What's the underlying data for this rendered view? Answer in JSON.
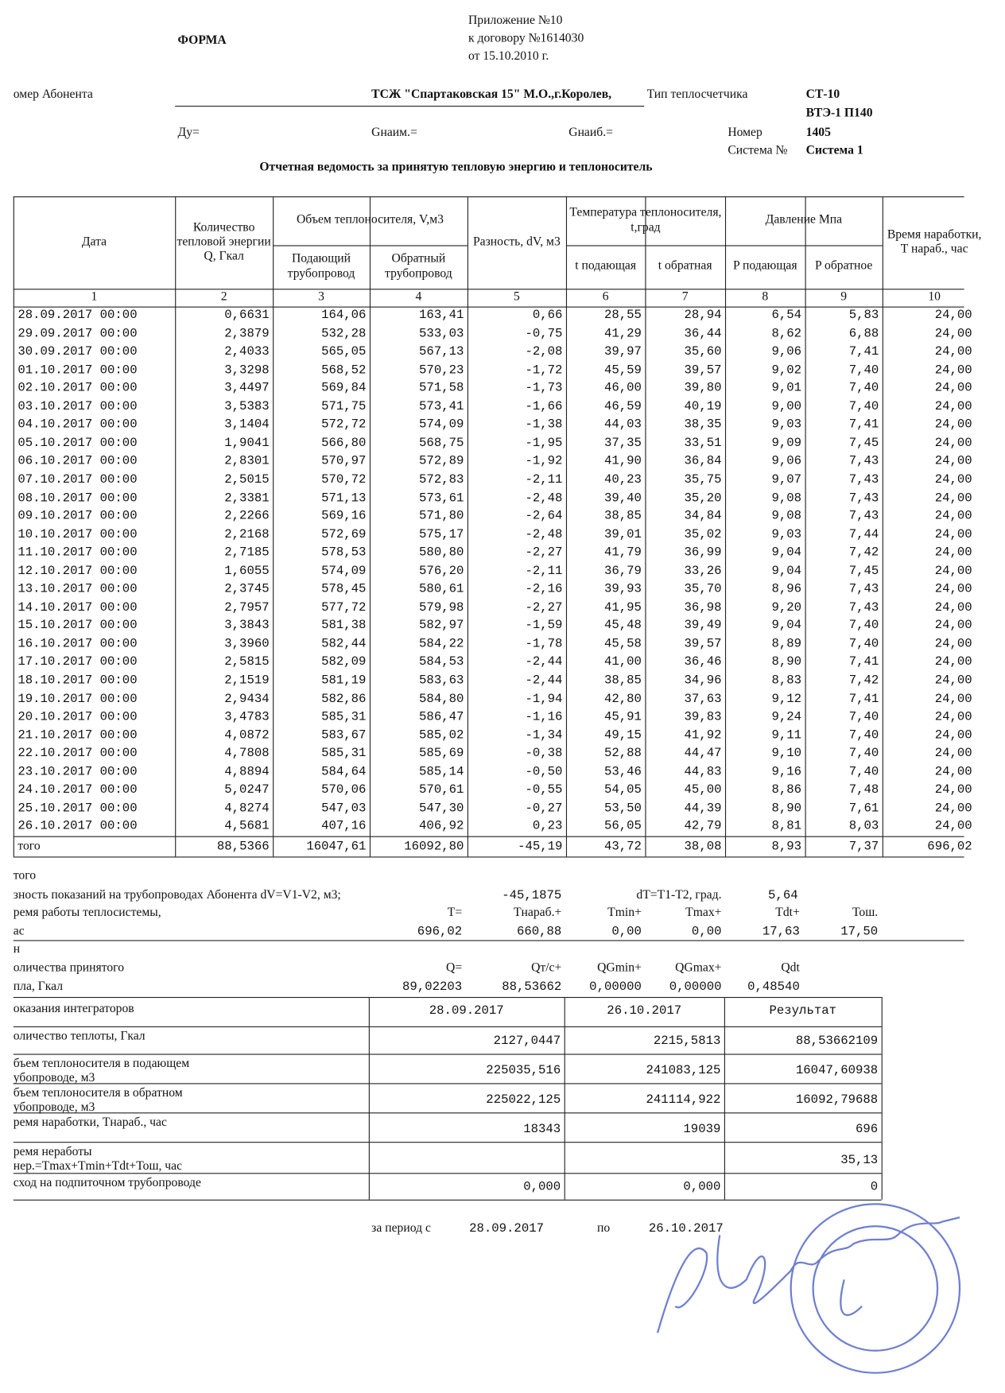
{
  "header": {
    "form": "ФОРМА",
    "appendix": [
      "Приложение №10",
      "к договору №1614030",
      "от 15.10.2010 г."
    ],
    "subscriber_label": "омер Абонента",
    "subscriber": "ТСЖ \"Спартаковская 15\" М.О.,г.Королев,",
    "meter_type_label": "Тип теплосчетчика",
    "meter_type": "СТ-10",
    "meter_model": "ВТЭ-1 П140",
    "du": "Ду=",
    "g_min": "Gнаим.=",
    "g_max": "Gнаиб.=",
    "number_label": "Номер",
    "number": "1405",
    "system_label": "Система №",
    "system": "Система 1",
    "title": "Отчетная ведомость за принятую тепловую энергию и теплоноситель"
  },
  "table": {
    "head": {
      "date": "Дата",
      "q": "Количество тепловой энергии Q, Гкал",
      "volume": "Объем теплоносителя,      V,м3",
      "supply": "Подающий трубопровод",
      "return": "Обратный трубопровод",
      "diff": "Разность, dV, м3",
      "temp": "Температура теплоносителя, t,град",
      "t_supply": "t подающая",
      "t_return": "t обратная",
      "pressure": "Давление Мпа",
      "p_supply": "P подающая",
      "p_return": "P   обратное",
      "hours": "Время наработки, T нараб., час"
    },
    "column_numbers": [
      "1",
      "2",
      "3",
      "4",
      "5",
      "6",
      "7",
      "8",
      "9",
      "10"
    ],
    "rows": [
      [
        "28.09.2017 00:00",
        "0,6631",
        "164,06",
        "163,41",
        "0,66",
        "28,55",
        "28,94",
        "6,54",
        "5,83",
        "24,00"
      ],
      [
        "29.09.2017 00:00",
        "2,3879",
        "532,28",
        "533,03",
        "-0,75",
        "41,29",
        "36,44",
        "8,62",
        "6,88",
        "24,00"
      ],
      [
        "30.09.2017 00:00",
        "2,4033",
        "565,05",
        "567,13",
        "-2,08",
        "39,97",
        "35,60",
        "9,06",
        "7,41",
        "24,00"
      ],
      [
        "01.10.2017 00:00",
        "3,3298",
        "568,52",
        "570,23",
        "-1,72",
        "45,59",
        "39,57",
        "9,02",
        "7,40",
        "24,00"
      ],
      [
        "02.10.2017 00:00",
        "3,4497",
        "569,84",
        "571,58",
        "-1,73",
        "46,00",
        "39,80",
        "9,01",
        "7,40",
        "24,00"
      ],
      [
        "03.10.2017 00:00",
        "3,5383",
        "571,75",
        "573,41",
        "-1,66",
        "46,59",
        "40,19",
        "9,00",
        "7,40",
        "24,00"
      ],
      [
        "04.10.2017 00:00",
        "3,1404",
        "572,72",
        "574,09",
        "-1,38",
        "44,03",
        "38,35",
        "9,03",
        "7,41",
        "24,00"
      ],
      [
        "05.10.2017 00:00",
        "1,9041",
        "566,80",
        "568,75",
        "-1,95",
        "37,35",
        "33,51",
        "9,09",
        "7,45",
        "24,00"
      ],
      [
        "06.10.2017 00:00",
        "2,8301",
        "570,97",
        "572,89",
        "-1,92",
        "41,90",
        "36,84",
        "9,06",
        "7,43",
        "24,00"
      ],
      [
        "07.10.2017 00:00",
        "2,5015",
        "570,72",
        "572,83",
        "-2,11",
        "40,23",
        "35,75",
        "9,07",
        "7,43",
        "24,00"
      ],
      [
        "08.10.2017 00:00",
        "2,3381",
        "571,13",
        "573,61",
        "-2,48",
        "39,40",
        "35,20",
        "9,08",
        "7,43",
        "24,00"
      ],
      [
        "09.10.2017 00:00",
        "2,2266",
        "569,16",
        "571,80",
        "-2,64",
        "38,85",
        "34,84",
        "9,08",
        "7,43",
        "24,00"
      ],
      [
        "10.10.2017 00:00",
        "2,2168",
        "572,69",
        "575,17",
        "-2,48",
        "39,01",
        "35,02",
        "9,03",
        "7,44",
        "24,00"
      ],
      [
        "11.10.2017 00:00",
        "2,7185",
        "578,53",
        "580,80",
        "-2,27",
        "41,79",
        "36,99",
        "9,04",
        "7,42",
        "24,00"
      ],
      [
        "12.10.2017 00:00",
        "1,6055",
        "574,09",
        "576,20",
        "-2,11",
        "36,79",
        "33,26",
        "9,04",
        "7,45",
        "24,00"
      ],
      [
        "13.10.2017 00:00",
        "2,3745",
        "578,45",
        "580,61",
        "-2,16",
        "39,93",
        "35,70",
        "8,96",
        "7,43",
        "24,00"
      ],
      [
        "14.10.2017 00:00",
        "2,7957",
        "577,72",
        "579,98",
        "-2,27",
        "41,95",
        "36,98",
        "9,20",
        "7,43",
        "24,00"
      ],
      [
        "15.10.2017 00:00",
        "3,3843",
        "581,38",
        "582,97",
        "-1,59",
        "45,48",
        "39,49",
        "9,04",
        "7,40",
        "24,00"
      ],
      [
        "16.10.2017 00:00",
        "3,3960",
        "582,44",
        "584,22",
        "-1,78",
        "45,58",
        "39,57",
        "8,89",
        "7,40",
        "24,00"
      ],
      [
        "17.10.2017 00:00",
        "2,5815",
        "582,09",
        "584,53",
        "-2,44",
        "41,00",
        "36,46",
        "8,90",
        "7,41",
        "24,00"
      ],
      [
        "18.10.2017 00:00",
        "2,1519",
        "581,19",
        "583,63",
        "-2,44",
        "38,85",
        "34,96",
        "8,83",
        "7,42",
        "24,00"
      ],
      [
        "19.10.2017 00:00",
        "2,9434",
        "582,86",
        "584,80",
        "-1,94",
        "42,80",
        "37,63",
        "9,12",
        "7,41",
        "24,00"
      ],
      [
        "20.10.2017 00:00",
        "3,4783",
        "585,31",
        "586,47",
        "-1,16",
        "45,91",
        "39,83",
        "9,24",
        "7,40",
        "24,00"
      ],
      [
        "21.10.2017 00:00",
        "4,0872",
        "583,67",
        "585,02",
        "-1,34",
        "49,15",
        "41,92",
        "9,11",
        "7,40",
        "24,00"
      ],
      [
        "22.10.2017 00:00",
        "4,7808",
        "585,31",
        "585,69",
        "-0,38",
        "52,88",
        "44,47",
        "9,10",
        "7,40",
        "24,00"
      ],
      [
        "23.10.2017 00:00",
        "4,8894",
        "584,64",
        "585,14",
        "-0,50",
        "53,46",
        "44,83",
        "9,16",
        "7,40",
        "24,00"
      ],
      [
        "24.10.2017 00:00",
        "5,0247",
        "570,06",
        "570,61",
        "-0,55",
        "54,05",
        "45,00",
        "8,86",
        "7,48",
        "24,00"
      ],
      [
        "25.10.2017 00:00",
        "4,8274",
        "547,03",
        "547,30",
        "-0,27",
        "53,50",
        "44,39",
        "8,90",
        "7,61",
        "24,00"
      ],
      [
        "26.10.2017 00:00",
        "4,5681",
        "407,16",
        "406,92",
        "0,23",
        "56,05",
        "42,79",
        "8,81",
        "8,03",
        "24,00"
      ]
    ],
    "total": [
      "того",
      "88,5366",
      "16047,61",
      "16092,80",
      "-45,19",
      "43,72",
      "38,08",
      "8,93",
      "7,37",
      "696,02"
    ]
  },
  "summary": {
    "lines": [
      [
        "того"
      ],
      [
        "зность показаний на трубопроводах Абонента dV=V1-V2, м3;",
        "-45,1875",
        "dT=T1-T2, град.",
        "5,64"
      ],
      [
        "ремя работы теплосистемы,",
        "T=",
        "Тнараб.+",
        "Tmin+",
        "Tmax+",
        "Tdt+",
        "Тош."
      ],
      [
        "ас",
        "696,02",
        "660,88",
        "0,00",
        "0,00",
        "17,63",
        "17,50"
      ],
      [
        "н"
      ],
      [
        "оличества принятого",
        "Q=",
        "Qт/c+",
        "QGmin+",
        "QGmax+",
        "Qdt"
      ],
      [
        "пла, Гкал",
        "89,02203",
        "88,53662",
        "0,00000",
        "0,00000",
        "0,48540"
      ]
    ]
  },
  "integrators": {
    "header": [
      "оказания интеграторов",
      "28.09.2017",
      "26.10.2017",
      "Результат"
    ],
    "rows": [
      [
        "оличество теплоты, Гкал",
        "2127,0447",
        "2215,5813",
        "88,53662109"
      ],
      [
        "бъем теплоносителя в подающем\nубопроводе, м3",
        "225035,516",
        "241083,125",
        "16047,60938"
      ],
      [
        "бъем теплоносителя в обратном\nубопроводе, м3",
        "225022,125",
        "241114,922",
        "16092,79688"
      ],
      [
        "ремя наработки, Тнараб., час",
        "18343",
        "19039",
        "696"
      ],
      [
        "ремя неработы\nнер.=Tmax+Tmin+Tdt+Тош, час",
        "",
        "",
        "35,13"
      ],
      [
        "сход на подпиточном трубопроводе",
        "0,000",
        "0,000",
        "0"
      ]
    ]
  },
  "period": {
    "from_label": "за период с",
    "from": "28.09.2017",
    "to_label": "по",
    "to": "26.10.2017"
  }
}
